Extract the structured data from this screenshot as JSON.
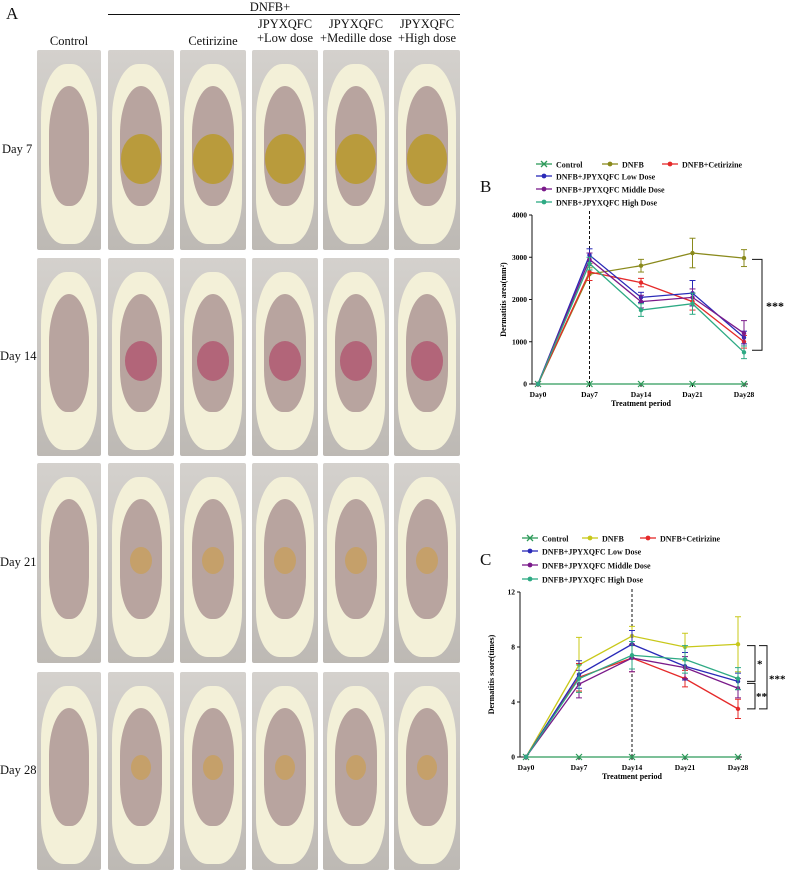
{
  "panel_a": {
    "letter": "A",
    "group_header": "DNFB+",
    "columns": [
      "Control",
      "",
      "Cetirizine",
      "JPYXQFC\n+Low dose",
      "JPYXQFC\n+Medille dose",
      "JPYXQFC\n+High dose"
    ],
    "rows": [
      "Day 7",
      "Day 14",
      "Day 21",
      "Day 28"
    ],
    "colors": {
      "photo_bg": "#c9c6c2",
      "fur": "#f3f0d8",
      "skin_shaved": "#b8a49f",
      "lesion_yellow": "#b89a2a",
      "lesion_red": "#b05a72"
    }
  },
  "chart_data": [
    {
      "panel": "B",
      "type": "line",
      "xlabel": "Treatment period",
      "ylabel": "Dermatitis area(mm²)",
      "categories": [
        "Day0",
        "Day7",
        "Day14",
        "Day21",
        "Day28"
      ],
      "ylim": [
        0,
        4000
      ],
      "yticks": [
        0,
        1000,
        2000,
        3000,
        4000
      ],
      "vline_at": "Day7",
      "significance": "***",
      "legend_location": "top",
      "series": [
        {
          "name": "Control",
          "color": "#2e9a5a",
          "marker": "x",
          "values": [
            0,
            0,
            0,
            0,
            0
          ],
          "errors": [
            0,
            0,
            0,
            0,
            0
          ]
        },
        {
          "name": "DNFB",
          "color": "#8a8a1c",
          "marker": "o",
          "values": [
            0,
            2600,
            2800,
            3100,
            2980
          ],
          "errors": [
            0,
            150,
            150,
            350,
            200
          ]
        },
        {
          "name": "DNFB+Cetirizine",
          "color": "#e52a2a",
          "marker": "o",
          "values": [
            0,
            2650,
            2400,
            1950,
            1000
          ],
          "errors": [
            0,
            200,
            100,
            200,
            150
          ]
        },
        {
          "name": "DNFB+JPYXQFC Low Dose",
          "color": "#2a2ab8",
          "marker": "o",
          "values": [
            0,
            3050,
            2050,
            2150,
            1100
          ],
          "errors": [
            0,
            150,
            120,
            300,
            150
          ]
        },
        {
          "name": "DNFB+JPYXQFC Middle Dose",
          "color": "#7a1a8a",
          "marker": "o",
          "values": [
            0,
            2950,
            1950,
            2050,
            1200
          ],
          "errors": [
            0,
            150,
            150,
            200,
            300
          ]
        },
        {
          "name": "DNFB+JPYXQFC High Dose",
          "color": "#2eaa84",
          "marker": "o",
          "values": [
            0,
            2850,
            1750,
            1900,
            750
          ],
          "errors": [
            0,
            150,
            150,
            250,
            150
          ]
        }
      ]
    },
    {
      "panel": "C",
      "type": "line",
      "xlabel": "Treatment period",
      "ylabel": "Dermatitis score(times)",
      "categories": [
        "Day0",
        "Day7",
        "Day14",
        "Day21",
        "Day28"
      ],
      "ylim": [
        0,
        12
      ],
      "yticks": [
        0,
        4,
        8,
        12
      ],
      "vline_at": "Day14",
      "significance_brackets": [
        "*",
        "**",
        "***"
      ],
      "legend_location": "top",
      "series": [
        {
          "name": "Control",
          "color": "#2e9a5a",
          "marker": "x",
          "values": [
            0,
            0,
            0,
            0,
            0
          ],
          "errors": [
            0,
            0,
            0,
            0,
            0
          ]
        },
        {
          "name": "DNFB",
          "color": "#c8c81a",
          "marker": "o",
          "values": [
            0,
            6.7,
            8.8,
            8.0,
            8.2
          ],
          "errors": [
            0,
            2.0,
            0.7,
            1.0,
            2.0
          ]
        },
        {
          "name": "DNFB+Cetirizine",
          "color": "#e52a2a",
          "marker": "o",
          "values": [
            0,
            5.8,
            7.2,
            5.7,
            3.5
          ],
          "errors": [
            0,
            1.0,
            1.0,
            0.6,
            0.7
          ]
        },
        {
          "name": "DNFB+JPYXQFC Low Dose",
          "color": "#2a2ab8",
          "marker": "o",
          "values": [
            0,
            6.0,
            8.2,
            6.6,
            5.5
          ],
          "errors": [
            0,
            1.0,
            1.0,
            1.0,
            0.6
          ]
        },
        {
          "name": "DNFB+JPYXQFC Middle Dose",
          "color": "#7a1a8a",
          "marker": "o",
          "values": [
            0,
            5.3,
            7.2,
            6.5,
            5.0
          ],
          "errors": [
            0,
            1.0,
            1.0,
            0.8,
            0.7
          ]
        },
        {
          "name": "DNFB+JPYXQFC High Dose",
          "color": "#2eaa84",
          "marker": "o",
          "values": [
            0,
            5.7,
            7.4,
            7.1,
            5.7
          ],
          "errors": [
            0,
            1.0,
            1.0,
            1.0,
            0.8
          ]
        }
      ]
    }
  ]
}
